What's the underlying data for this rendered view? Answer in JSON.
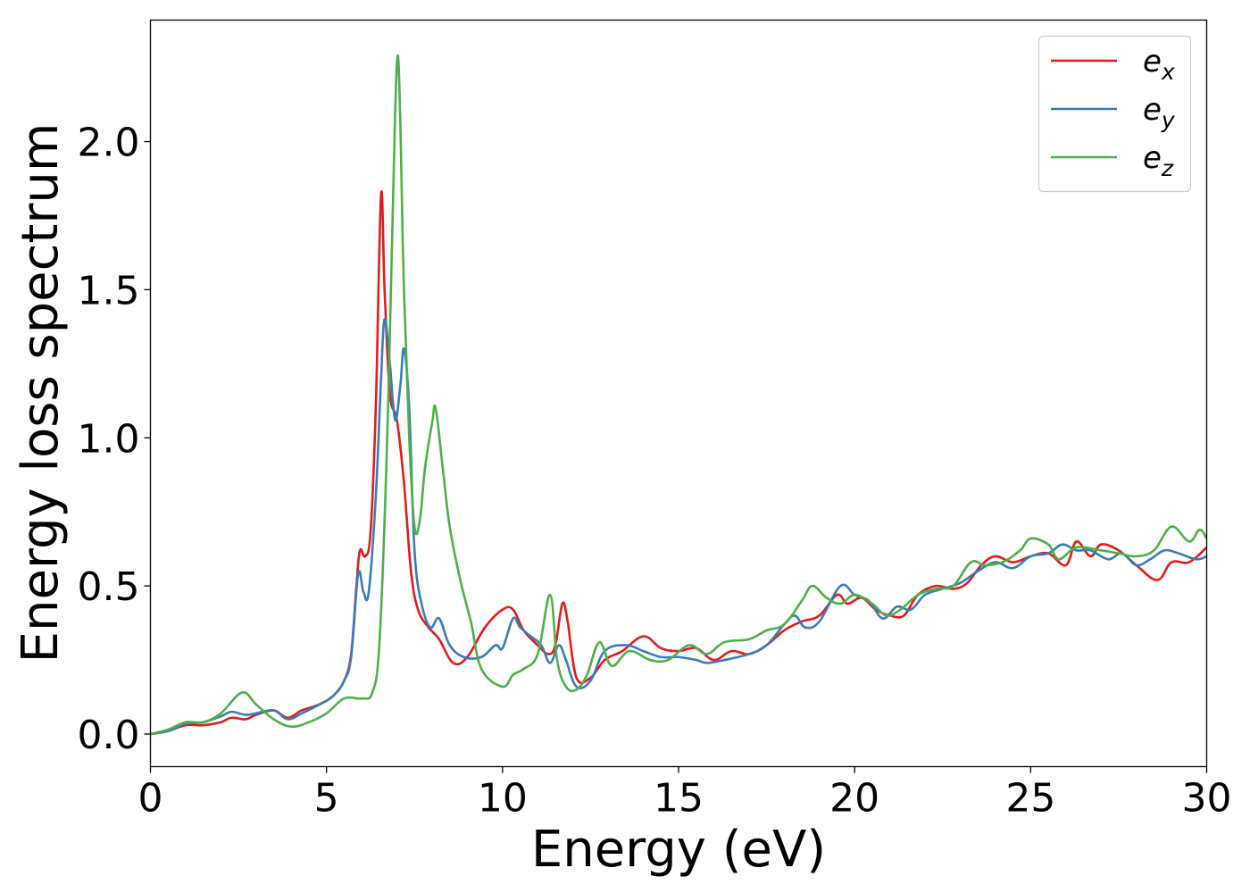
{
  "chart_data": {
    "type": "line",
    "xlabel": "Energy (eV)",
    "ylabel": "Energy loss spectrum",
    "xlim": [
      0,
      30
    ],
    "ylim": [
      -0.11,
      2.41
    ],
    "xticks": [
      0,
      5,
      10,
      15,
      20,
      25,
      30
    ],
    "yticks": [
      0.0,
      0.5,
      1.0,
      1.5,
      2.0
    ],
    "xtick_labels": [
      "0",
      "5",
      "10",
      "15",
      "20",
      "25",
      "30"
    ],
    "ytick_labels": [
      "0.0",
      "0.5",
      "1.0",
      "1.5",
      "2.0"
    ],
    "grid": false,
    "legend_position": "top-right",
    "series": [
      {
        "name": "e_x",
        "name_base": "e",
        "name_sub": "x",
        "color": "#e41a1c",
        "points": [
          [
            0,
            0.0
          ],
          [
            0.5,
            0.01
          ],
          [
            1.0,
            0.03
          ],
          [
            1.5,
            0.03
          ],
          [
            2.0,
            0.04
          ],
          [
            2.3,
            0.055
          ],
          [
            2.7,
            0.05
          ],
          [
            3.0,
            0.065
          ],
          [
            3.5,
            0.08
          ],
          [
            3.9,
            0.055
          ],
          [
            4.3,
            0.08
          ],
          [
            4.8,
            0.1
          ],
          [
            5.2,
            0.13
          ],
          [
            5.5,
            0.18
          ],
          [
            5.7,
            0.27
          ],
          [
            5.85,
            0.5
          ],
          [
            5.95,
            0.62
          ],
          [
            6.1,
            0.6
          ],
          [
            6.25,
            0.68
          ],
          [
            6.4,
            1.1
          ],
          [
            6.55,
            1.82
          ],
          [
            6.65,
            1.5
          ],
          [
            6.8,
            1.15
          ],
          [
            7.0,
            1.06
          ],
          [
            7.2,
            0.85
          ],
          [
            7.4,
            0.55
          ],
          [
            7.6,
            0.42
          ],
          [
            7.9,
            0.36
          ],
          [
            8.2,
            0.32
          ],
          [
            8.6,
            0.24
          ],
          [
            9.0,
            0.26
          ],
          [
            9.5,
            0.36
          ],
          [
            10.0,
            0.42
          ],
          [
            10.3,
            0.42
          ],
          [
            10.6,
            0.35
          ],
          [
            11.0,
            0.3
          ],
          [
            11.3,
            0.27
          ],
          [
            11.5,
            0.3
          ],
          [
            11.7,
            0.44
          ],
          [
            11.85,
            0.38
          ],
          [
            12.1,
            0.19
          ],
          [
            12.5,
            0.19
          ],
          [
            12.9,
            0.25
          ],
          [
            13.4,
            0.28
          ],
          [
            14.0,
            0.33
          ],
          [
            14.5,
            0.29
          ],
          [
            15.0,
            0.28
          ],
          [
            15.5,
            0.29
          ],
          [
            16.0,
            0.25
          ],
          [
            16.5,
            0.28
          ],
          [
            17.0,
            0.27
          ],
          [
            17.5,
            0.3
          ],
          [
            18.0,
            0.35
          ],
          [
            18.5,
            0.38
          ],
          [
            19.0,
            0.4
          ],
          [
            19.5,
            0.47
          ],
          [
            19.8,
            0.44
          ],
          [
            20.2,
            0.46
          ],
          [
            20.6,
            0.42
          ],
          [
            21.0,
            0.4
          ],
          [
            21.4,
            0.4
          ],
          [
            21.8,
            0.47
          ],
          [
            22.3,
            0.5
          ],
          [
            22.8,
            0.49
          ],
          [
            23.2,
            0.51
          ],
          [
            23.6,
            0.57
          ],
          [
            24.0,
            0.6
          ],
          [
            24.5,
            0.58
          ],
          [
            25.0,
            0.6
          ],
          [
            25.5,
            0.61
          ],
          [
            26.0,
            0.57
          ],
          [
            26.3,
            0.65
          ],
          [
            26.7,
            0.6
          ],
          [
            27.0,
            0.64
          ],
          [
            27.5,
            0.62
          ],
          [
            28.0,
            0.57
          ],
          [
            28.6,
            0.52
          ],
          [
            29.0,
            0.58
          ],
          [
            29.5,
            0.58
          ],
          [
            30.0,
            0.63
          ]
        ]
      },
      {
        "name": "e_y",
        "name_base": "e",
        "name_sub": "y",
        "color": "#377eb8",
        "points": [
          [
            0,
            0.0
          ],
          [
            0.5,
            0.01
          ],
          [
            1.0,
            0.035
          ],
          [
            1.5,
            0.04
          ],
          [
            2.0,
            0.06
          ],
          [
            2.3,
            0.075
          ],
          [
            2.7,
            0.065
          ],
          [
            3.0,
            0.07
          ],
          [
            3.5,
            0.08
          ],
          [
            3.9,
            0.05
          ],
          [
            4.3,
            0.07
          ],
          [
            4.8,
            0.1
          ],
          [
            5.2,
            0.13
          ],
          [
            5.5,
            0.18
          ],
          [
            5.7,
            0.26
          ],
          [
            5.9,
            0.54
          ],
          [
            6.05,
            0.48
          ],
          [
            6.2,
            0.48
          ],
          [
            6.4,
            0.8
          ],
          [
            6.55,
            1.2
          ],
          [
            6.65,
            1.4
          ],
          [
            6.8,
            1.25
          ],
          [
            6.95,
            1.06
          ],
          [
            7.1,
            1.18
          ],
          [
            7.2,
            1.3
          ],
          [
            7.35,
            1.1
          ],
          [
            7.5,
            0.62
          ],
          [
            7.7,
            0.44
          ],
          [
            7.95,
            0.36
          ],
          [
            8.2,
            0.39
          ],
          [
            8.5,
            0.3
          ],
          [
            8.9,
            0.26
          ],
          [
            9.4,
            0.26
          ],
          [
            9.8,
            0.3
          ],
          [
            10.0,
            0.29
          ],
          [
            10.3,
            0.39
          ],
          [
            10.5,
            0.36
          ],
          [
            10.8,
            0.33
          ],
          [
            11.1,
            0.3
          ],
          [
            11.35,
            0.24
          ],
          [
            11.6,
            0.3
          ],
          [
            11.8,
            0.25
          ],
          [
            12.1,
            0.16
          ],
          [
            12.5,
            0.18
          ],
          [
            12.9,
            0.28
          ],
          [
            13.5,
            0.3
          ],
          [
            14.0,
            0.28
          ],
          [
            14.5,
            0.26
          ],
          [
            15.0,
            0.26
          ],
          [
            15.5,
            0.25
          ],
          [
            15.8,
            0.24
          ],
          [
            16.3,
            0.25
          ],
          [
            17.0,
            0.27
          ],
          [
            17.5,
            0.3
          ],
          [
            18.0,
            0.37
          ],
          [
            18.3,
            0.4
          ],
          [
            18.6,
            0.36
          ],
          [
            19.0,
            0.38
          ],
          [
            19.6,
            0.5
          ],
          [
            20.0,
            0.47
          ],
          [
            20.4,
            0.45
          ],
          [
            20.8,
            0.39
          ],
          [
            21.2,
            0.43
          ],
          [
            21.6,
            0.42
          ],
          [
            22.0,
            0.47
          ],
          [
            22.5,
            0.49
          ],
          [
            23.0,
            0.51
          ],
          [
            23.5,
            0.55
          ],
          [
            24.0,
            0.58
          ],
          [
            24.5,
            0.56
          ],
          [
            25.0,
            0.6
          ],
          [
            25.5,
            0.61
          ],
          [
            25.9,
            0.64
          ],
          [
            26.3,
            0.62
          ],
          [
            26.7,
            0.62
          ],
          [
            27.2,
            0.59
          ],
          [
            27.6,
            0.61
          ],
          [
            28.0,
            0.57
          ],
          [
            28.4,
            0.59
          ],
          [
            28.8,
            0.62
          ],
          [
            29.2,
            0.61
          ],
          [
            29.7,
            0.59
          ],
          [
            30.0,
            0.6
          ]
        ]
      },
      {
        "name": "e_z",
        "name_base": "e",
        "name_sub": "z",
        "color": "#4daf4a",
        "points": [
          [
            0,
            0.0
          ],
          [
            0.5,
            0.015
          ],
          [
            1.0,
            0.04
          ],
          [
            1.5,
            0.04
          ],
          [
            2.0,
            0.07
          ],
          [
            2.6,
            0.14
          ],
          [
            3.0,
            0.1
          ],
          [
            3.5,
            0.05
          ],
          [
            4.0,
            0.025
          ],
          [
            4.5,
            0.04
          ],
          [
            5.0,
            0.07
          ],
          [
            5.5,
            0.12
          ],
          [
            6.0,
            0.12
          ],
          [
            6.3,
            0.14
          ],
          [
            6.5,
            0.3
          ],
          [
            6.7,
            0.9
          ],
          [
            6.85,
            1.6
          ],
          [
            6.95,
            2.1
          ],
          [
            7.03,
            2.29
          ],
          [
            7.1,
            2.05
          ],
          [
            7.2,
            1.5
          ],
          [
            7.35,
            1.0
          ],
          [
            7.5,
            0.7
          ],
          [
            7.65,
            0.72
          ],
          [
            7.8,
            0.9
          ],
          [
            8.0,
            1.05
          ],
          [
            8.1,
            1.1
          ],
          [
            8.3,
            0.9
          ],
          [
            8.5,
            0.7
          ],
          [
            8.8,
            0.52
          ],
          [
            9.1,
            0.38
          ],
          [
            9.4,
            0.22
          ],
          [
            10.0,
            0.16
          ],
          [
            10.3,
            0.2
          ],
          [
            10.6,
            0.22
          ],
          [
            11.0,
            0.27
          ],
          [
            11.35,
            0.47
          ],
          [
            11.55,
            0.25
          ],
          [
            11.8,
            0.16
          ],
          [
            12.1,
            0.15
          ],
          [
            12.4,
            0.2
          ],
          [
            12.75,
            0.31
          ],
          [
            13.1,
            0.23
          ],
          [
            13.6,
            0.28
          ],
          [
            14.2,
            0.25
          ],
          [
            14.7,
            0.25
          ],
          [
            15.3,
            0.3
          ],
          [
            15.8,
            0.27
          ],
          [
            16.3,
            0.31
          ],
          [
            17.0,
            0.32
          ],
          [
            17.5,
            0.35
          ],
          [
            18.0,
            0.37
          ],
          [
            18.5,
            0.45
          ],
          [
            18.8,
            0.5
          ],
          [
            19.2,
            0.46
          ],
          [
            19.6,
            0.44
          ],
          [
            20.0,
            0.47
          ],
          [
            20.5,
            0.44
          ],
          [
            20.9,
            0.4
          ],
          [
            21.3,
            0.42
          ],
          [
            21.8,
            0.47
          ],
          [
            22.3,
            0.49
          ],
          [
            22.8,
            0.5
          ],
          [
            23.3,
            0.58
          ],
          [
            23.7,
            0.57
          ],
          [
            24.2,
            0.58
          ],
          [
            24.7,
            0.62
          ],
          [
            25.0,
            0.66
          ],
          [
            25.5,
            0.64
          ],
          [
            25.8,
            0.59
          ],
          [
            26.3,
            0.63
          ],
          [
            27.0,
            0.62
          ],
          [
            27.5,
            0.61
          ],
          [
            28.0,
            0.6
          ],
          [
            28.5,
            0.62
          ],
          [
            29.0,
            0.7
          ],
          [
            29.5,
            0.65
          ],
          [
            29.8,
            0.69
          ],
          [
            30.0,
            0.66
          ]
        ]
      }
    ]
  }
}
